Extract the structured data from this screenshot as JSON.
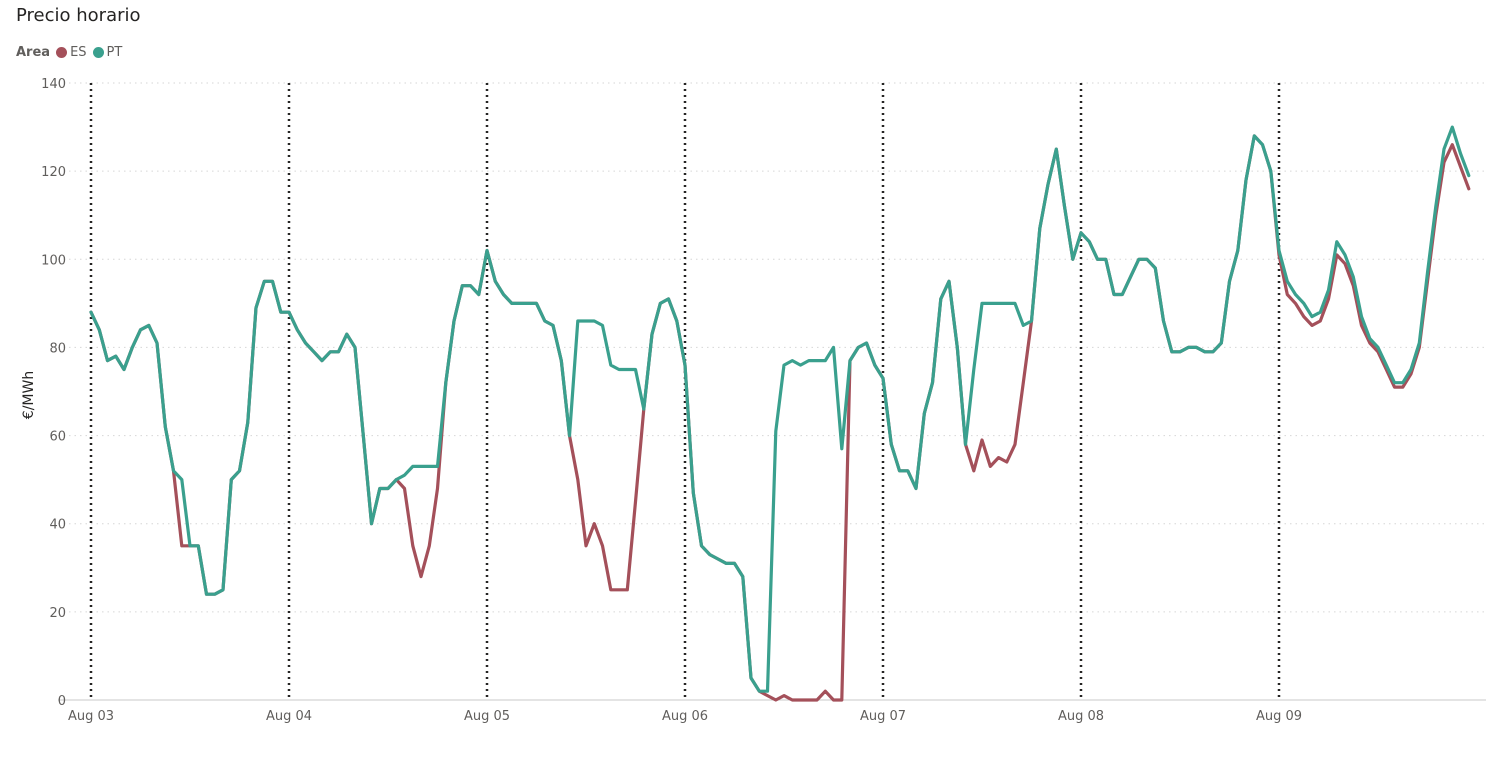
{
  "title": "Precio horario",
  "legend": {
    "title": "Area",
    "items": [
      {
        "label": "ES",
        "color": "#A4505A"
      },
      {
        "label": "PT",
        "color": "#3AA08E"
      }
    ]
  },
  "chart_data": {
    "type": "line",
    "title": "Precio horario",
    "xlabel": "",
    "ylabel": "€/MWh",
    "ylim": [
      0,
      140
    ],
    "yticks": [
      0,
      20,
      40,
      60,
      80,
      100,
      120,
      140
    ],
    "grid": true,
    "x_axis": "hour index from Aug 03 00:00 (7 days × 24 hours)",
    "x_tick_labels": [
      "Aug 03",
      "Aug 04",
      "Aug 05",
      "Aug 06",
      "Aug 07",
      "Aug 08",
      "Aug 09"
    ],
    "x_tick_hours": [
      0,
      24,
      48,
      72,
      96,
      120,
      144
    ],
    "series": [
      {
        "name": "ES",
        "color": "#A4505A",
        "values": [
          88,
          84,
          77,
          78,
          75,
          80,
          84,
          85,
          81,
          62,
          52,
          35,
          35,
          35,
          24,
          24,
          25,
          50,
          52,
          63,
          89,
          95,
          95,
          88,
          88,
          84,
          81,
          79,
          77,
          79,
          79,
          83,
          80,
          60,
          40,
          48,
          48,
          50,
          48,
          35,
          28,
          35,
          48,
          72,
          86,
          94,
          94,
          92,
          102,
          95,
          92,
          90,
          90,
          90,
          90,
          86,
          85,
          77,
          60,
          50,
          35,
          40,
          35,
          25,
          25,
          25,
          45,
          66,
          83,
          90,
          91,
          86,
          76,
          47,
          35,
          33,
          32,
          31,
          31,
          28,
          5,
          2,
          1,
          0,
          1,
          0,
          0,
          0,
          0,
          2,
          0,
          0,
          77,
          80,
          81,
          76,
          73,
          58,
          52,
          52,
          48,
          65,
          72,
          91,
          95,
          80,
          58,
          52,
          59,
          53,
          55,
          54,
          58,
          72,
          86,
          107,
          117,
          125,
          112,
          100,
          106,
          104,
          100,
          100,
          92,
          92,
          96,
          100,
          100,
          98,
          86,
          79,
          79,
          80,
          80,
          79,
          79,
          81,
          95,
          102,
          118,
          128,
          126,
          120,
          101,
          92,
          90,
          87,
          85,
          86,
          91,
          101,
          99,
          94,
          85,
          81,
          79,
          75,
          71,
          71,
          74,
          80,
          95,
          110,
          122,
          126,
          121,
          116
        ]
      },
      {
        "name": "PT",
        "color": "#3AA08E",
        "values": [
          88,
          84,
          77,
          78,
          75,
          80,
          84,
          85,
          81,
          62,
          52,
          50,
          35,
          35,
          24,
          24,
          25,
          50,
          52,
          63,
          89,
          95,
          95,
          88,
          88,
          84,
          81,
          79,
          77,
          79,
          79,
          83,
          80,
          60,
          40,
          48,
          48,
          50,
          51,
          53,
          53,
          53,
          53,
          72,
          86,
          94,
          94,
          92,
          102,
          95,
          92,
          90,
          90,
          90,
          90,
          86,
          85,
          77,
          60,
          86,
          86,
          86,
          85,
          76,
          75,
          75,
          75,
          66,
          83,
          90,
          91,
          86,
          76,
          47,
          35,
          33,
          32,
          31,
          31,
          28,
          5,
          2,
          2,
          61,
          76,
          77,
          76,
          77,
          77,
          77,
          80,
          57,
          77,
          80,
          81,
          76,
          73,
          58,
          52,
          52,
          48,
          65,
          72,
          91,
          95,
          80,
          58,
          75,
          90,
          90,
          90,
          90,
          90,
          85,
          86,
          107,
          117,
          125,
          112,
          100,
          106,
          104,
          100,
          100,
          92,
          92,
          96,
          100,
          100,
          98,
          86,
          79,
          79,
          80,
          80,
          79,
          79,
          81,
          95,
          102,
          118,
          128,
          126,
          120,
          102,
          95,
          92,
          90,
          87,
          88,
          93,
          104,
          101,
          96,
          87,
          82,
          80,
          76,
          72,
          72,
          75,
          81,
          97,
          112,
          125,
          130,
          124,
          119
        ]
      }
    ]
  }
}
